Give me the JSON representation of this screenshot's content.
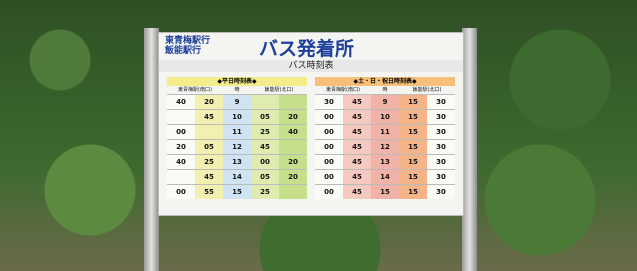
{
  "sign": {
    "header": {
      "destinations": [
        "東青梅駅行",
        "飯能駅行"
      ],
      "title": "バス発着所"
    },
    "subtitle": "バス時刻表",
    "tables": [
      {
        "title": "◆平日時刻表◆",
        "columns": [
          "東青梅駅(南口)",
          "時",
          "飯能駅(北口)"
        ],
        "rows": [
          [
            "40",
            "20",
            "9",
            null,
            null
          ],
          [
            null,
            "45",
            "10",
            "05",
            "20"
          ],
          [
            "00",
            null,
            "11",
            "25",
            "40"
          ],
          [
            "20",
            "05",
            "12",
            "45",
            null
          ],
          [
            "40",
            "25",
            "13",
            "00",
            "20"
          ],
          [
            null,
            "45",
            "14",
            "05",
            "20"
          ],
          [
            "00",
            "55",
            "15",
            "25",
            null
          ]
        ]
      },
      {
        "title": "◆土・日・祝日時刻表◆",
        "columns": [
          "東青梅駅(南口)",
          "時",
          "飯能駅(北口)"
        ],
        "rows": [
          [
            "30",
            "45",
            "9",
            "15",
            "30"
          ],
          [
            "00",
            "45",
            "10",
            "15",
            "30"
          ],
          [
            "00",
            "45",
            "11",
            "15",
            "30"
          ],
          [
            "00",
            "45",
            "12",
            "15",
            "30"
          ],
          [
            "00",
            "45",
            "13",
            "15",
            "30"
          ],
          [
            "00",
            "45",
            "14",
            "15",
            "30"
          ],
          [
            "00",
            "45",
            "15",
            "15",
            "30"
          ]
        ]
      }
    ]
  }
}
